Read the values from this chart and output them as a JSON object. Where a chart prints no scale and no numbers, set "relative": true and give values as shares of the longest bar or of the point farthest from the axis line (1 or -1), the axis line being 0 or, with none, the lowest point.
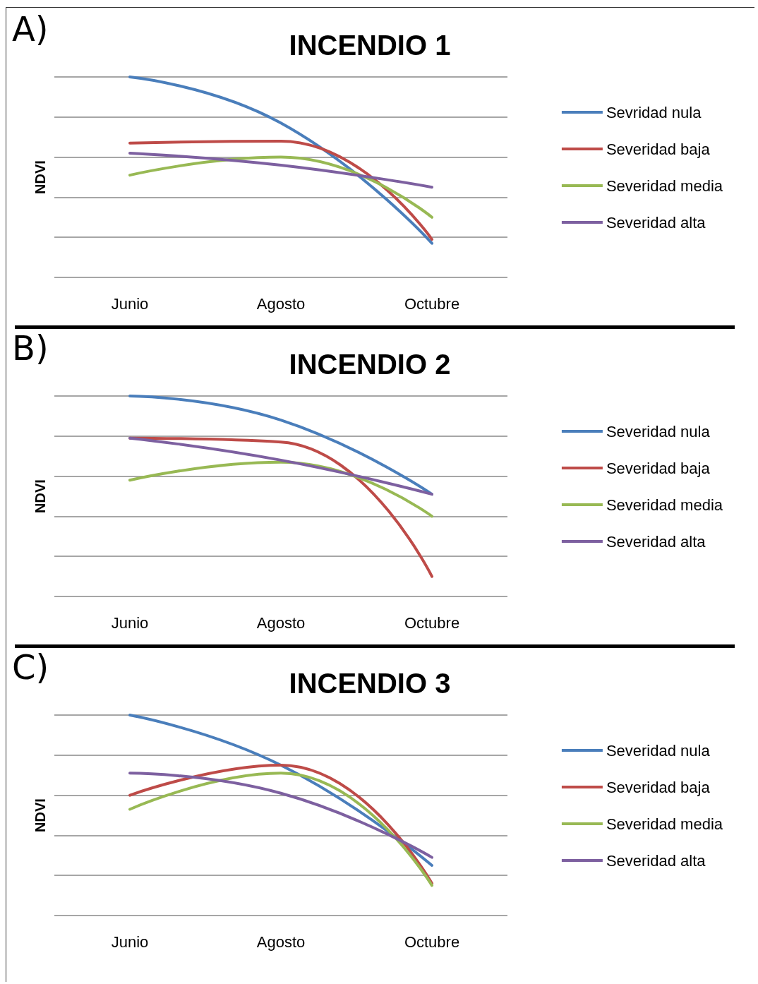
{
  "chart_data": [
    {
      "type": "line",
      "title": "INCENDIO 1",
      "ylabel": "NDVI",
      "annotations": [
        "A)"
      ],
      "relative": true,
      "grid": "y",
      "legend": "right",
      "marker": "none",
      "line_style": "solid",
      "categories": [
        "Junio",
        "Agosto",
        "Octubre"
      ],
      "series": [
        {
          "name": "Sevridad nula",
          "color": "#4a7ebb",
          "values": [
            1,
            0.77,
            0.17
          ]
        },
        {
          "name": "Severidad baja",
          "color": "#be4b48",
          "values": [
            0.67,
            0.68,
            0.19
          ]
        },
        {
          "name": "Severidad media",
          "color": "#98b954",
          "values": [
            0.51,
            0.6,
            0.3
          ]
        },
        {
          "name": "Severidad alta",
          "color": "#7d60a0",
          "values": [
            0.62,
            0.56,
            0.45
          ]
        }
      ]
    },
    {
      "type": "line",
      "title": "INCENDIO 2",
      "ylabel": "NDVI",
      "annotations": [
        "B)"
      ],
      "relative": true,
      "grid": "y",
      "legend": "right",
      "marker": "none",
      "line_style": "solid",
      "categories": [
        "Junio",
        "Agosto",
        "Octubre"
      ],
      "series": [
        {
          "name": "Severidad nula",
          "color": "#4a7ebb",
          "values": [
            1,
            0.88,
            0.51
          ]
        },
        {
          "name": "Severidad baja",
          "color": "#be4b48",
          "values": [
            0.79,
            0.77,
            0.1
          ]
        },
        {
          "name": "Severidad media",
          "color": "#98b954",
          "values": [
            0.58,
            0.67,
            0.4
          ]
        },
        {
          "name": "Severidad alta",
          "color": "#7d60a0",
          "values": [
            0.79,
            0.68,
            0.51
          ]
        }
      ]
    },
    {
      "type": "line",
      "title": "INCENDIO 3",
      "ylabel": "NDVI",
      "annotations": [
        "C)"
      ],
      "relative": true,
      "grid": "y",
      "legend": "right",
      "marker": "none",
      "line_style": "solid",
      "categories": [
        "Junio",
        "Agosto",
        "Octubre"
      ],
      "series": [
        {
          "name": "Severidad nula",
          "color": "#4a7ebb",
          "values": [
            1,
            0.75,
            0.25
          ]
        },
        {
          "name": "Severidad baja",
          "color": "#be4b48",
          "values": [
            0.6,
            0.75,
            0.16
          ]
        },
        {
          "name": "Severidad media",
          "color": "#98b954",
          "values": [
            0.53,
            0.71,
            0.15
          ]
        },
        {
          "name": "Severidad alta",
          "color": "#7d60a0",
          "values": [
            0.71,
            0.61,
            0.29
          ]
        }
      ]
    }
  ]
}
